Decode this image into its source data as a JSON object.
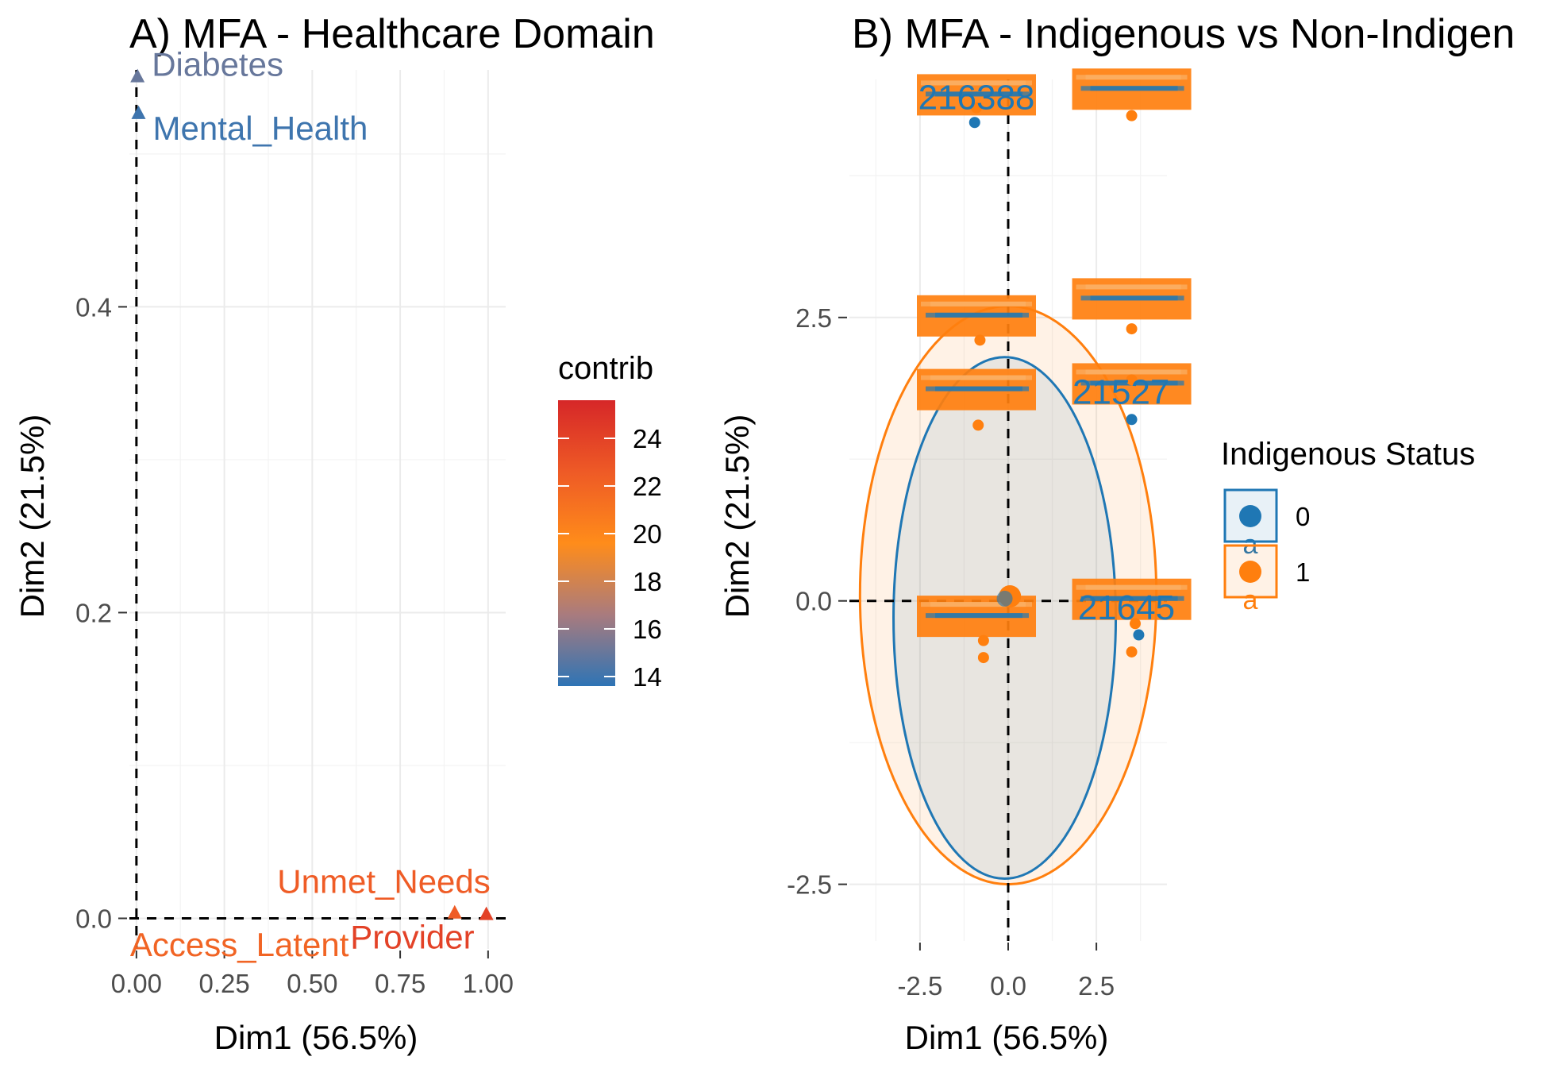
{
  "chart_data": [
    {
      "panel": "A",
      "type": "scatter",
      "title": "A) MFA - Healthcare Domain",
      "xlabel": "Dim1 (56.5%)",
      "ylabel": "Dim2 (21.5%)",
      "xlim": [
        -0.02,
        1.05
      ],
      "ylim": [
        -0.02,
        0.555
      ],
      "xticks": [
        0,
        0.25,
        0.5,
        0.75,
        1
      ],
      "xtick_labels": [
        "0.00",
        "0.25",
        "0.50",
        "0.75",
        "1.00"
      ],
      "yticks": [
        0,
        0.2,
        0.4
      ],
      "ytick_labels": [
        "0.0",
        "0.2",
        "0.4"
      ],
      "grid": true,
      "points": [
        {
          "label": "Diabetes",
          "x": 0.003,
          "y": 0.55,
          "contrib": 15.0
        },
        {
          "label": "Mental_Health",
          "x": 0.006,
          "y": 0.526,
          "contrib": 14.0
        },
        {
          "label": "Unmet_Needs",
          "x": 0.905,
          "y": 0.003,
          "contrib": 22.5
        },
        {
          "label": "Provider",
          "x": 0.995,
          "y": 0.002,
          "contrib": 24.0
        },
        {
          "label": "Access_Latent",
          "x": 0.0,
          "y": -0.008,
          "contrib": 22.0
        }
      ],
      "colorbar": {
        "title": "contrib",
        "range": [
          13.6,
          25.6
        ],
        "ticks": [
          14,
          16,
          18,
          20,
          22,
          24
        ],
        "colors": [
          "#2e74b5",
          "#a97b7e",
          "#ff8c1a",
          "#ee5a26",
          "#d62728"
        ]
      }
    },
    {
      "panel": "B",
      "type": "scatter",
      "title": "B) MFA - Indigenous vs Non-Indigen",
      "xlabel": "Dim1 (56.5%)",
      "ylabel": "Dim2 (21.5%)",
      "xlim": [
        -4.5,
        4.5
      ],
      "ylim": [
        -3.0,
        4.6
      ],
      "xticks": [
        -2.5,
        0,
        2.5
      ],
      "xtick_labels": [
        "-2.5",
        "0.0",
        "2.5"
      ],
      "yticks": [
        -2.5,
        0,
        2.5
      ],
      "ytick_labels": [
        "-2.5",
        "0.0",
        "2.5"
      ],
      "grid": true,
      "legend": {
        "title": "Indigenous Status",
        "position": "right",
        "entries": [
          "0",
          "1"
        ],
        "key_glyph": "a"
      },
      "series": [
        {
          "name": "0",
          "color": "#1f77b4",
          "points": [
            [
              -0.95,
              4.22
            ],
            [
              3.5,
              1.6
            ],
            [
              3.7,
              -0.3
            ]
          ],
          "mean": [
            -0.1,
            0.02
          ],
          "ellipse": {
            "center": [
              -0.1,
              -0.15
            ],
            "rx": 3.15,
            "ry": 2.3
          }
        },
        {
          "name": "1",
          "color": "#ff7f0e",
          "points": [
            [
              -0.9,
              4.35
            ],
            [
              3.5,
              4.28
            ],
            [
              -0.8,
              2.3
            ],
            [
              3.5,
              2.4
            ],
            [
              -0.85,
              1.55
            ],
            [
              3.5,
              1.95
            ],
            [
              -0.7,
              -0.35
            ],
            [
              -0.7,
              -0.5
            ],
            [
              3.5,
              -0.45
            ],
            [
              3.6,
              -0.2
            ]
          ],
          "mean": [
            0.05,
            0.04
          ],
          "ellipse": {
            "center": [
              0.0,
              0.05
            ],
            "rx": 4.2,
            "ry": 2.55
          }
        }
      ],
      "point_labels": [
        {
          "text": "216388",
          "x": -0.9,
          "y": 4.45,
          "color": "#1f77b4"
        },
        {
          "text": "21527",
          "x": 3.2,
          "y": 1.85,
          "color": "#1f77b4"
        },
        {
          "text": "21645",
          "x": 3.35,
          "y": -0.05,
          "color": "#1f77b4"
        }
      ]
    }
  ]
}
